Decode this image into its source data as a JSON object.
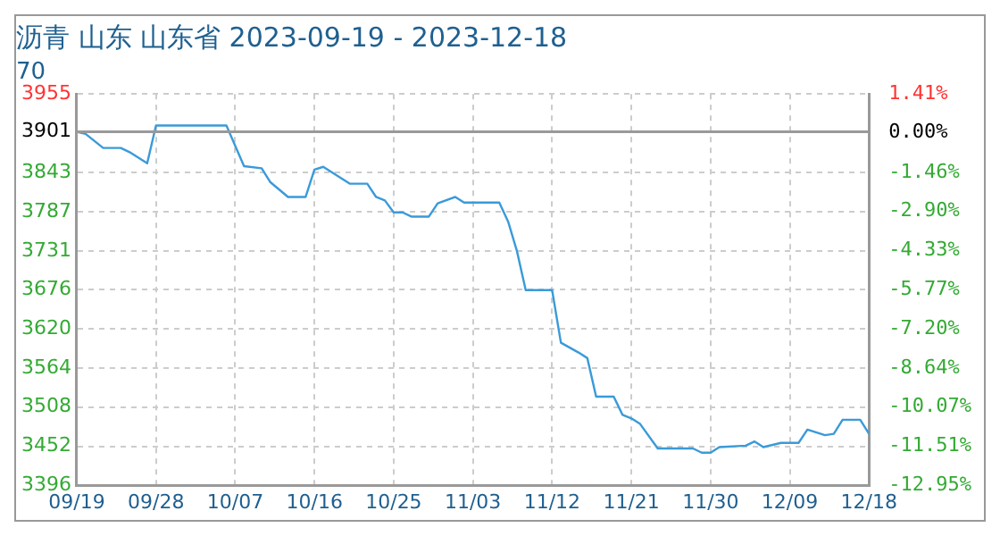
{
  "chart_data": {
    "type": "line",
    "title": "沥青 山东 山东省 2023-09-19 - 2023-12-18",
    "subtitle": "70",
    "x": [
      "2023-09-19",
      "2023-09-20",
      "2023-09-22",
      "2023-09-24",
      "2023-09-25",
      "2023-09-26",
      "2023-09-27",
      "2023-09-28",
      "2023-10-06",
      "2023-10-08",
      "2023-10-10",
      "2023-10-11",
      "2023-10-13",
      "2023-10-15",
      "2023-10-16",
      "2023-10-17",
      "2023-10-20",
      "2023-10-22",
      "2023-10-23",
      "2023-10-24",
      "2023-10-25",
      "2023-10-26",
      "2023-10-27",
      "2023-10-29",
      "2023-10-30",
      "2023-11-01",
      "2023-11-02",
      "2023-11-06",
      "2023-11-07",
      "2023-11-08",
      "2023-11-09",
      "2023-11-12",
      "2023-11-13",
      "2023-11-15",
      "2023-11-16",
      "2023-11-17",
      "2023-11-19",
      "2023-11-20",
      "2023-11-21",
      "2023-11-22",
      "2023-11-24",
      "2023-11-28",
      "2023-11-29",
      "2023-11-30",
      "2023-12-01",
      "2023-12-04",
      "2023-12-05",
      "2023-12-06",
      "2023-12-08",
      "2023-12-10",
      "2023-12-11",
      "2023-12-13",
      "2023-12-14",
      "2023-12-15",
      "2023-12-17",
      "2023-12-18"
    ],
    "series": [
      {
        "color": "#3a9ad9",
        "values": [
          3901,
          3898,
          3878,
          3878,
          3872,
          3864,
          3856,
          3910,
          3910,
          3852,
          3849,
          3829,
          3808,
          3808,
          3847,
          3851,
          3827,
          3827,
          3808,
          3803,
          3786,
          3786,
          3780,
          3780,
          3799,
          3808,
          3800,
          3800,
          3773,
          3731,
          3675,
          3675,
          3600,
          3586,
          3578,
          3523,
          3523,
          3497,
          3492,
          3484,
          3449,
          3449,
          3443,
          3443,
          3451,
          3453,
          3459,
          3451,
          3457,
          3457,
          3476,
          3468,
          3470,
          3490,
          3490,
          3470
        ]
      }
    ],
    "xlim": [
      "2023-09-19",
      "2023-12-18"
    ],
    "xticks": [
      {
        "value": "2023-09-19",
        "label": "09/19"
      },
      {
        "value": "2023-09-28",
        "label": "09/28"
      },
      {
        "value": "2023-10-07",
        "label": "10/07"
      },
      {
        "value": "2023-10-16",
        "label": "10/16"
      },
      {
        "value": "2023-10-25",
        "label": "10/25"
      },
      {
        "value": "2023-11-03",
        "label": "11/03"
      },
      {
        "value": "2023-11-12",
        "label": "11/12"
      },
      {
        "value": "2023-11-21",
        "label": "11/21"
      },
      {
        "value": "2023-11-30",
        "label": "11/30"
      },
      {
        "value": "2023-12-09",
        "label": "12/09"
      },
      {
        "value": "2023-12-18",
        "label": "12/18"
      }
    ],
    "ylim": [
      3396,
      3955
    ],
    "yticks": [
      3396,
      3452,
      3508,
      3564,
      3620,
      3676,
      3731,
      3787,
      3843,
      3901,
      3955
    ],
    "y2lim": [
      -12.95,
      1.41
    ],
    "y2ticks": [
      {
        "value": -12.95,
        "label": "-12.95%"
      },
      {
        "value": -11.51,
        "label": "-11.51%"
      },
      {
        "value": -10.07,
        "label": "-10.07%"
      },
      {
        "value": -8.64,
        "label": "-8.64%"
      },
      {
        "value": -7.2,
        "label": "-7.20%"
      },
      {
        "value": -5.77,
        "label": "-5.77%"
      },
      {
        "value": -4.33,
        "label": "-4.33%"
      },
      {
        "value": -2.9,
        "label": "-2.90%"
      },
      {
        "value": -1.46,
        "label": "-1.46%"
      },
      {
        "value": 0,
        "label": "0.00%"
      },
      {
        "value": 1.41,
        "label": "1.41%"
      }
    ],
    "ref_lines": [
      {
        "axis": "y",
        "value": 3901,
        "color": "#999999"
      }
    ],
    "grid": true,
    "legend": false,
    "marker": "none",
    "line_style": "solid"
  }
}
